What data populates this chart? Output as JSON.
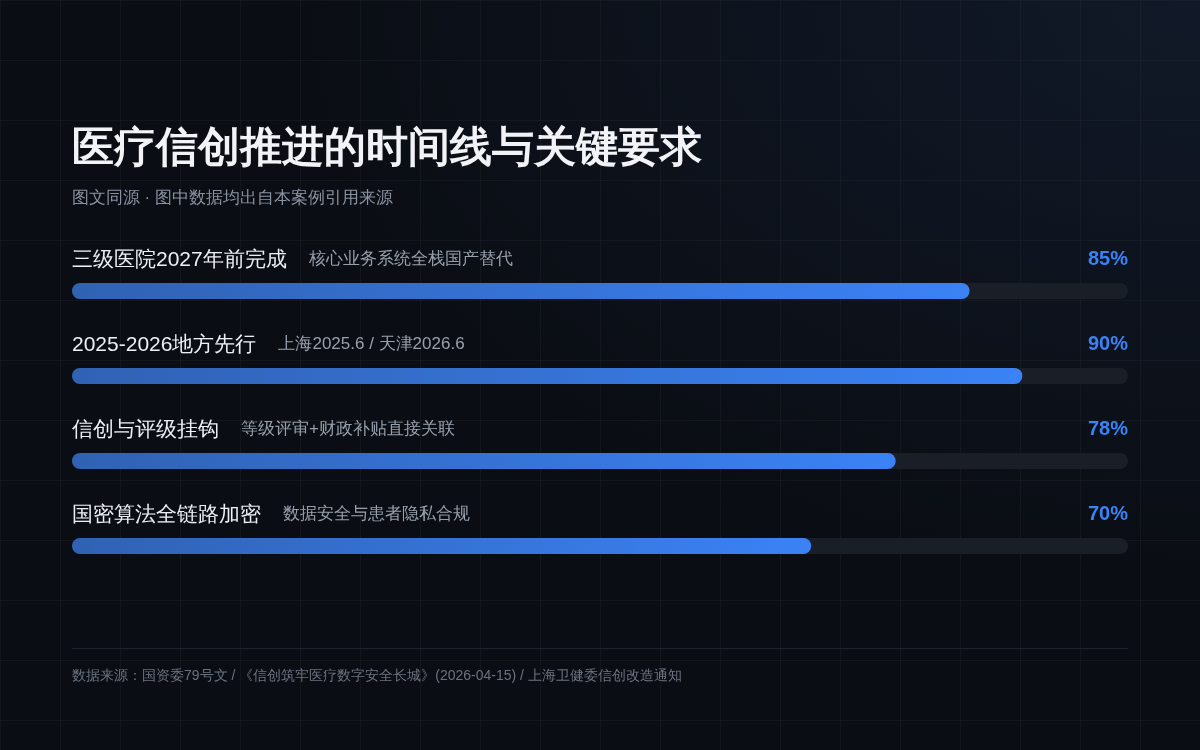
{
  "chart_data": {
    "type": "bar",
    "orientation": "horizontal",
    "title": "医疗信创推进的时间线与关键要求",
    "subtitle": "图文同源 · 图中数据均出自本案例引用来源",
    "categories": [
      "三级医院2027年前完成",
      "2025-2026地方先行",
      "信创与评级挂钩",
      "国密算法全链路加密"
    ],
    "values": [
      85,
      90,
      78,
      70
    ],
    "value_labels": [
      "85%",
      "90%",
      "78%",
      "70%"
    ],
    "color": "#3b82f6",
    "xlim": [
      0,
      100
    ],
    "tick_labels": "y",
    "annotations": [
      "核心业务系统全栈国产替代",
      "上海2025.6 / 天津2026.6",
      "等级评审+财政补贴直接关联",
      "数据安全与患者隐私合规",
      "数据来源：国资委79号文 / 《信创筑牢医疗数字安全长城》(2026-04-15) / 上海卫健委信创改造通知"
    ]
  }
}
